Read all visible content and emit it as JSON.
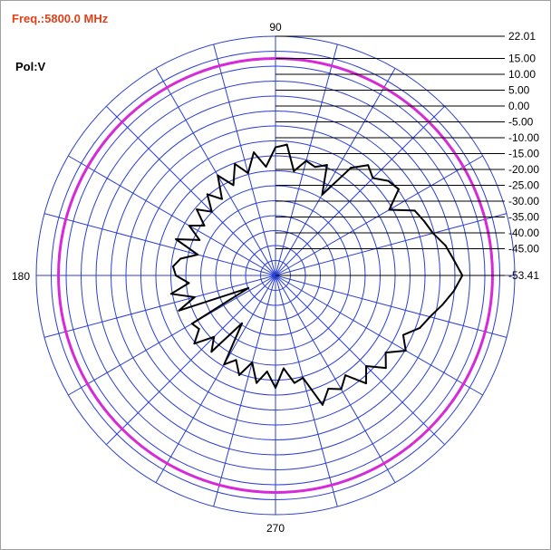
{
  "header": {
    "frequency": "Freq.:5800.0 MHz",
    "polarization": "Pol:V"
  },
  "colors": {
    "grid": "#2b3fd1",
    "reference_circle": "#d62ad6",
    "trace": "#000000",
    "frequency_text": "#e0401a"
  },
  "chart_data": {
    "type": "polar",
    "angle_unit": "degrees",
    "angle_labels": [
      "90",
      "180",
      "270"
    ],
    "radial_unit": "dB",
    "radial_range": [
      -53.41,
      22.01
    ],
    "radial_tick_labels": [
      "22.01",
      "15.00",
      "10.00",
      "5.00",
      "0.00",
      "-5.00",
      "-10.00",
      "-15.00",
      "-20.00",
      "-25.00",
      "-30.00",
      "-35.00",
      "-40.00",
      "-45.00",
      "-53.41"
    ],
    "radial_tick_values": [
      22.01,
      15,
      10,
      5,
      0,
      -5,
      -10,
      -15,
      -20,
      -25,
      -30,
      -35,
      -40,
      -45,
      -53.41
    ],
    "reference_level": 15.0,
    "series": [
      {
        "angles": [
          0,
          5,
          10,
          15,
          20,
          25,
          30,
          35,
          40,
          45,
          50,
          55,
          60,
          65,
          70,
          75,
          80,
          85,
          90,
          95,
          100,
          105,
          110,
          115,
          120,
          125,
          130,
          135,
          140,
          145,
          150,
          155,
          160,
          165,
          170,
          175,
          180,
          185,
          190,
          195,
          200,
          205,
          210,
          215,
          220,
          225,
          230,
          235,
          240,
          245,
          250,
          255,
          260,
          265,
          270,
          275,
          280,
          285,
          290,
          295,
          300,
          305,
          310,
          315,
          320,
          325,
          330,
          335,
          340,
          345,
          350,
          355
        ],
        "values": [
          5.5,
          3.0,
          1.0,
          -2.0,
          -3.5,
          -5.0,
          -12.0,
          -6.0,
          -7.0,
          -10.0,
          -8.0,
          -12.0,
          -24.0,
          -15.0,
          -17.0,
          -16.0,
          -20.0,
          -12.0,
          -13.0,
          -19.0,
          -14.0,
          -20.0,
          -16.0,
          -22.0,
          -17.0,
          -24.0,
          -20.0,
          -25.0,
          -21.0,
          -26.0,
          -22.0,
          -27.0,
          -20.0,
          -28.0,
          -23.0,
          -21.0,
          -22.0,
          -26.0,
          -20.0,
          -27.0,
          -21.0,
          -44.0,
          -23.0,
          -24.0,
          -20.0,
          -26.0,
          -22.0,
          -35.0,
          -21.0,
          -24.0,
          -20.0,
          -25.0,
          -19.0,
          -23.0,
          -18.0,
          -24.0,
          -19.0,
          -20.0,
          -10.0,
          -14.0,
          -12.0,
          -15.0,
          -9.0,
          -13.0,
          -8.0,
          -11.0,
          -6.0,
          -9.0,
          -5.0,
          -3.0,
          0.0,
          3.0
        ]
      }
    ]
  }
}
